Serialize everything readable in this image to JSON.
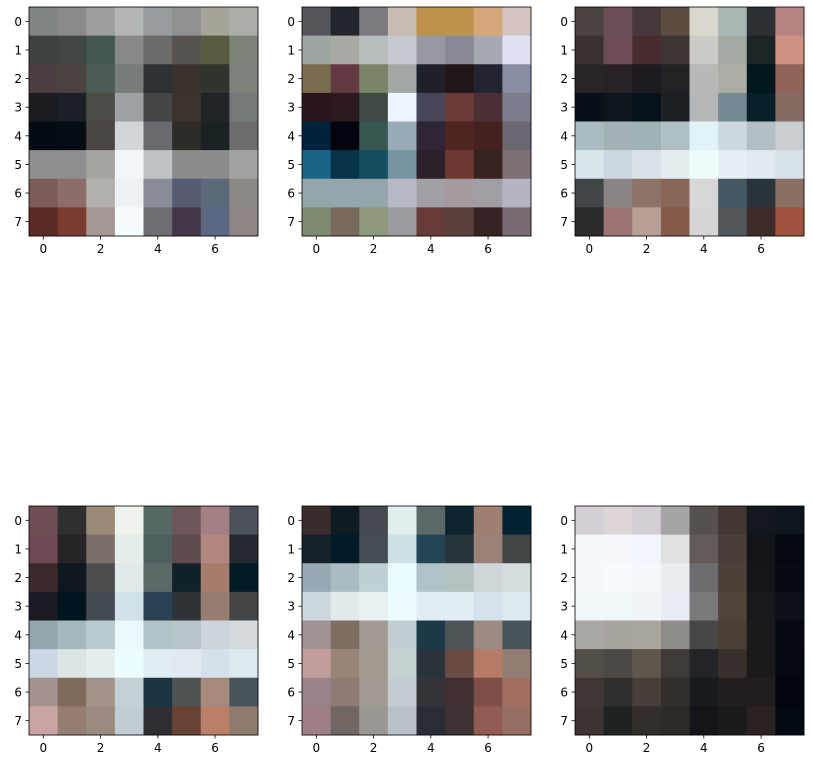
{
  "chart_data": [
    {
      "type": "heatmap",
      "grid": false,
      "x_ticks": [
        "0",
        "2",
        "4",
        "6"
      ],
      "y_ticks": [
        "0",
        "1",
        "2",
        "3",
        "4",
        "5",
        "6",
        "7"
      ],
      "colors": [
        [
          "#7f8580",
          "#8a8b89",
          "#9d9f9e",
          "#b4b6b3",
          "#999c9f",
          "#8f9090",
          "#a6a498",
          "#abada7"
        ],
        [
          "#3e4242",
          "#414545",
          "#455750",
          "#868985",
          "#6a6a69",
          "#585250",
          "#5a5a3f",
          "#7e8378"
        ],
        [
          "#4c3f42",
          "#4c4242",
          "#4b5a55",
          "#787c78",
          "#2d3234",
          "#3a322c",
          "#2f342c",
          "#7c8179"
        ],
        [
          "#1b1b22",
          "#1b1f26",
          "#4a4b45",
          "#9ea1a4",
          "#434547",
          "#3c332c",
          "#202428",
          "#737977"
        ],
        [
          "#050b12",
          "#060c14",
          "#4b4642",
          "#d1d6d8",
          "#686a6e",
          "#2e2c27",
          "#1b2226",
          "#6d6d6f"
        ],
        [
          "#8d8e8e",
          "#8f8f8f",
          "#a6a4a1",
          "#f3f6f8",
          "#c0c3c6",
          "#8a8b8c",
          "#8b8b8d",
          "#a5a3a2"
        ],
        [
          "#7c5c5a",
          "#8c6d69",
          "#b2b0ab",
          "#eef2f4",
          "#878c98",
          "#555c72",
          "#5c6979",
          "#8e8885"
        ],
        [
          "#5a2a25",
          "#7a3b31",
          "#a59791",
          "#f6fbfe",
          "#6f6c72",
          "#433848",
          "#5c6881",
          "#8d8684"
        ]
      ]
    },
    {
      "type": "heatmap",
      "grid": false,
      "x_ticks": [
        "0",
        "2",
        "4",
        "6"
      ],
      "y_ticks": [
        "0",
        "1",
        "2",
        "3",
        "4",
        "5",
        "6",
        "7"
      ],
      "colors": [
        [
          "#55555b",
          "#23252e",
          "#7b7a80",
          "#c7bbb1",
          "#be924b",
          "#be934e",
          "#d3a779",
          "#d4c3c0"
        ],
        [
          "#9da6a3",
          "#a9a9a4",
          "#b6bfbd",
          "#c6c8d0",
          "#9898a2",
          "#8a8a96",
          "#a6a8b2",
          "#dde1f2"
        ],
        [
          "#7a6c50",
          "#643a42",
          "#7a8467",
          "#a1a8a6",
          "#1f202a",
          "#201519",
          "#232331",
          "#8a8ea2"
        ],
        [
          "#2b161c",
          "#2b1a20",
          "#404944",
          "#eef6ff",
          "#474657",
          "#6c393a",
          "#4c2e35",
          "#7b7d8c"
        ],
        [
          "#02213a",
          "#020510",
          "#37564f",
          "#97acb6",
          "#302536",
          "#4f2521",
          "#44221f",
          "#6b6670"
        ],
        [
          "#1a6485",
          "#08314a",
          "#134d5e",
          "#7792a1",
          "#2c212b",
          "#6b3932",
          "#37231f",
          "#7c6f75"
        ],
        [
          "#94a6ab",
          "#94a6ad",
          "#94a5ae",
          "#b6b9c4",
          "#a19fa6",
          "#a49ba1",
          "#a09ea4",
          "#b5b5c2"
        ],
        [
          "#7f8b6e",
          "#78695c",
          "#8e9a7b",
          "#9a9ca0",
          "#683b3b",
          "#5a403c",
          "#372224",
          "#786a72"
        ]
      ]
    },
    {
      "type": "heatmap",
      "grid": false,
      "x_ticks": [
        "0",
        "2",
        "4",
        "6"
      ],
      "y_ticks": [
        "0",
        "1",
        "2",
        "3",
        "4",
        "5",
        "6",
        "7"
      ],
      "colors": [
        [
          "#4a433f",
          "#6b4e55",
          "#46393b",
          "#5a4d40",
          "#dad7ce",
          "#aab6b1",
          "#2c2f34",
          "#b58581"
        ],
        [
          "#3a3231",
          "#6c4c55",
          "#472b2d",
          "#3d3533",
          "#cdcbc7",
          "#a4aba3",
          "#1d2428",
          "#cf9282"
        ],
        [
          "#2a2427",
          "#282127",
          "#1d1b20",
          "#222123",
          "#b8b8b6",
          "#acaea6",
          "#01171e",
          "#8f6355"
        ],
        [
          "#071018",
          "#0d141c",
          "#05121b",
          "#1c2024",
          "#b5b7b8",
          "#758993",
          "#07202a",
          "#866a64"
        ],
        [
          "#aabcc2",
          "#a3b1b6",
          "#a1b2b6",
          "#b1c0c5",
          "#e2f2f9",
          "#cdd9de",
          "#b3bfc3",
          "#c9cdd0"
        ],
        [
          "#d9e3ea",
          "#cdd7df",
          "#d8e1e6",
          "#e6edf0",
          "#f0fbfe",
          "#e5eef3",
          "#e1eaf0",
          "#d7e1e8"
        ],
        [
          "#404547",
          "#8b8485",
          "#8c7568",
          "#886959",
          "#d8d6d6",
          "#445963",
          "#29343b",
          "#8a7062"
        ],
        [
          "#2d2a2c",
          "#9c7474",
          "#b89f97",
          "#845b4a",
          "#d6d4d4",
          "#51575b",
          "#3f2d2b",
          "#a05140"
        ]
      ]
    },
    {
      "type": "heatmap",
      "grid": false,
      "x_ticks": [
        "0",
        "2",
        "4",
        "6"
      ],
      "y_ticks": [
        "0",
        "1",
        "2",
        "3",
        "4",
        "5",
        "6",
        "7"
      ],
      "colors": [
        [
          "#6d4e54",
          "#2f2e31",
          "#9a8a77",
          "#eff2ed",
          "#566764",
          "#6d5657",
          "#a38083",
          "#4c5259"
        ],
        [
          "#6e4854",
          "#252326",
          "#7a6e68",
          "#e6eeeb",
          "#4e5f5e",
          "#604b4e",
          "#b1877f",
          "#24282f"
        ],
        [
          "#3c2a2c",
          "#0f181e",
          "#4b4c4e",
          "#e0e9e9",
          "#5a6966",
          "#12202a",
          "#a67d6c",
          "#011b25"
        ],
        [
          "#1b1b23",
          "#01151f",
          "#434a52",
          "#d2e0e7",
          "#2a4254",
          "#2e3338",
          "#967d72",
          "#434546"
        ],
        [
          "#93a6ae",
          "#a4b6be",
          "#b9cbd0",
          "#ebf9ff",
          "#b1c2c8",
          "#b7c4c9",
          "#cdd5db",
          "#d4dade"
        ],
        [
          "#cbd7e2",
          "#dce5e6",
          "#e5eeef",
          "#edfcff",
          "#e1ecf3",
          "#e1eaf0",
          "#d6e0ea",
          "#dde8ef"
        ],
        [
          "#a5928f",
          "#7f6a5b",
          "#a4958c",
          "#c3d1d5",
          "#1a3441",
          "#4e5353",
          "#a58a7b",
          "#47555a"
        ],
        [
          "#caa3a4",
          "#957d74",
          "#998b82",
          "#c2cdd1",
          "#2f2e32",
          "#684235",
          "#ba7f67",
          "#917b6f"
        ]
      ]
    },
    {
      "type": "heatmap",
      "grid": false,
      "x_ticks": [
        "0",
        "2",
        "4",
        "6"
      ],
      "y_ticks": [
        "0",
        "1",
        "2",
        "3",
        "4",
        "5",
        "6",
        "7"
      ],
      "colors": [
        [
          "#3a2b2d",
          "#0e1c22",
          "#444a4f",
          "#e0eeee",
          "#5a6868",
          "#0d232f",
          "#a07f73",
          "#012230"
        ],
        [
          "#152028",
          "#001a27",
          "#434d53",
          "#d0e0e3",
          "#244553",
          "#273439",
          "#9a8279",
          "#434646"
        ],
        [
          "#97a9b3",
          "#a9bcc2",
          "#bdd0d4",
          "#ecfbff",
          "#b0c2c8",
          "#b5c1c3",
          "#cfd6d9",
          "#d6dde0"
        ],
        [
          "#cbd7dd",
          "#e1e9ea",
          "#e8f0f1",
          "#effcff",
          "#e2edf3",
          "#e2edf4",
          "#d6e2ea",
          "#deeaf0"
        ],
        [
          "#a09594",
          "#7e6f61",
          "#a19992",
          "#c2ced2",
          "#1c3947",
          "#4d5659",
          "#9b8b82",
          "#495659"
        ],
        [
          "#c29d9c",
          "#9a8478",
          "#a29a91",
          "#c5d0d3",
          "#2a3339",
          "#6a4c44",
          "#b67b64",
          "#917d73"
        ],
        [
          "#9a828d",
          "#8f7b74",
          "#a19a92",
          "#c3cdd1",
          "#35323a",
          "#40302f",
          "#804e48",
          "#a06f61"
        ],
        [
          "#9d7f85",
          "#726663",
          "#9c9793",
          "#b8c1c6",
          "#2a2d36",
          "#3e3236",
          "#905b53",
          "#966d62"
        ]
      ]
    },
    {
      "type": "heatmap",
      "grid": false,
      "x_ticks": [
        "0",
        "2",
        "4",
        "6"
      ],
      "y_ticks": [
        "0",
        "1",
        "2",
        "3",
        "4",
        "5",
        "6",
        "7"
      ],
      "colors": [
        [
          "#d4cfd6",
          "#ded5d6",
          "#d4cdd3",
          "#a6a4a6",
          "#56514f",
          "#433734",
          "#14171d",
          "#0d141b"
        ],
        [
          "#f5f8fd",
          "#f6f8fd",
          "#f3f5fc",
          "#e1e1e3",
          "#625b5a",
          "#4b3d39",
          "#121419",
          "#03090f"
        ],
        [
          "#f4f9fb",
          "#f6fbff",
          "#f4f8fd",
          "#eaeef1",
          "#6d6c6e",
          "#4c4038",
          "#141519",
          "#050b11"
        ],
        [
          "#eff7fb",
          "#eef6fa",
          "#eef4f7",
          "#e9ecf3",
          "#7b797c",
          "#50443b",
          "#18191d",
          "#0b1016"
        ],
        [
          "#a9a8a4",
          "#a7a49e",
          "#aba69d",
          "#8f8d89",
          "#484747",
          "#4b3f37",
          "#1a191b",
          "#060a10"
        ],
        [
          "#554f4a",
          "#4c4944",
          "#5e574d",
          "#403b38",
          "#222428",
          "#37302c",
          "#1b1919",
          "#040a10"
        ],
        [
          "#3e3735",
          "#2f2f2e",
          "#483f39",
          "#352f2c",
          "#181b1e",
          "#221e1f",
          "#221e1e",
          "#00060b"
        ],
        [
          "#3c3432",
          "#1e2223",
          "#332e2b",
          "#2f2925",
          "#13151a",
          "#1a1a1d",
          "#2b2322",
          "#030a10"
        ]
      ]
    }
  ]
}
